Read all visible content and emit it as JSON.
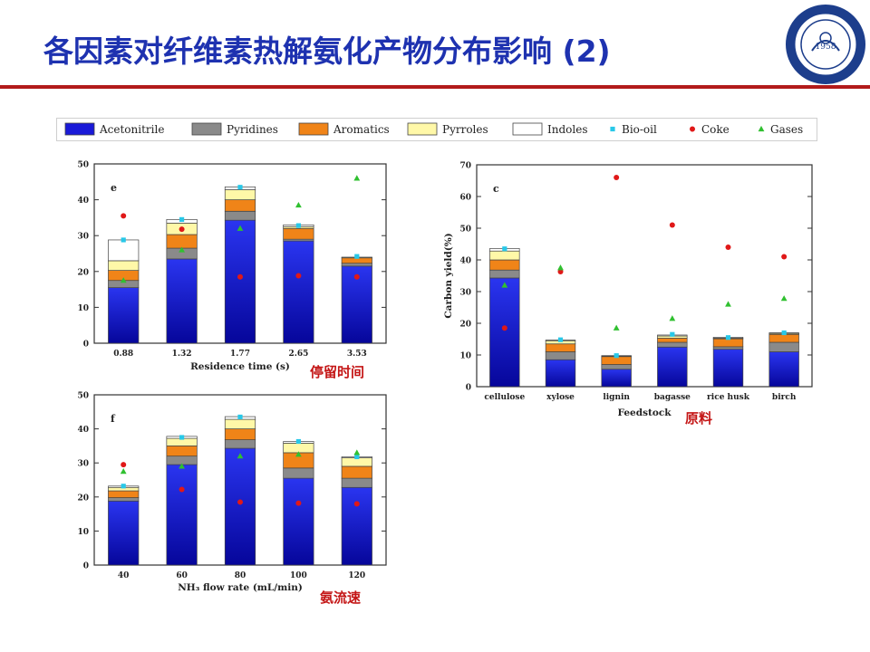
{
  "title": "各因素对纤维素热解氨化产物分布影响 (2)",
  "logo": {
    "year": "1958"
  },
  "legend": [
    {
      "key": "acetonitrile",
      "label": "Acetonitrile",
      "kind": "bar",
      "color": "#1a1ad8"
    },
    {
      "key": "pyridines",
      "label": "Pyridines",
      "kind": "bar",
      "color": "#8a8a8a"
    },
    {
      "key": "aromatics",
      "label": "Aromatics",
      "kind": "bar",
      "color": "#f08418"
    },
    {
      "key": "pyrroles",
      "label": "Pyrroles",
      "kind": "bar",
      "color": "#fff8a8"
    },
    {
      "key": "indoles",
      "label": "Indoles",
      "kind": "bar",
      "color": "#ffffff"
    },
    {
      "key": "biooil",
      "label": "Bio-oil",
      "kind": "square",
      "color": "#28c8e8"
    },
    {
      "key": "coke",
      "label": "Coke",
      "kind": "circle",
      "color": "#e01818"
    },
    {
      "key": "gases",
      "label": "Gases",
      "kind": "triangle",
      "color": "#30c030"
    }
  ],
  "annotations": {
    "e": "停留时间",
    "c": "原料",
    "f": "氨流速"
  },
  "chart_data": [
    {
      "id": "e",
      "type": "bar",
      "stacked": true,
      "panel_letter": "e",
      "xlabel": "Residence  time (s)",
      "ylabel": "",
      "ylim": [
        0,
        50
      ],
      "yticks": [
        0,
        10,
        20,
        30,
        40,
        50
      ],
      "categories": [
        "0.88",
        "1.32",
        "1.77",
        "2.65",
        "3.53"
      ],
      "series": [
        {
          "name": "Acetonitrile",
          "values": [
            15.5,
            23.5,
            34.3,
            28.5,
            21.5
          ]
        },
        {
          "name": "Pyridines",
          "values": [
            2.0,
            3.0,
            2.5,
            0.5,
            0.8
          ]
        },
        {
          "name": "Aromatics",
          "values": [
            2.8,
            3.8,
            3.2,
            3.0,
            1.5
          ]
        },
        {
          "name": "Pyrroles",
          "values": [
            2.7,
            3.2,
            2.8,
            0.5,
            0.2
          ]
        },
        {
          "name": "Indoles",
          "values": [
            5.8,
            1.0,
            0.8,
            0.5,
            0.0
          ]
        }
      ],
      "markers": {
        "Bio-oil": [
          28.8,
          34.5,
          43.5,
          32.8,
          24.2
        ],
        "Coke": [
          35.5,
          31.8,
          18.5,
          18.8,
          18.5
        ],
        "Gases": [
          17.5,
          26.0,
          32.0,
          38.5,
          46.0
        ]
      }
    },
    {
      "id": "f",
      "type": "bar",
      "stacked": true,
      "panel_letter": "f",
      "xlabel": "NH₃  flow  rate (mL/min)",
      "ylabel": "",
      "ylim": [
        0,
        50
      ],
      "yticks": [
        0,
        10,
        20,
        30,
        40,
        50
      ],
      "categories": [
        "40",
        "60",
        "80",
        "100",
        "120"
      ],
      "series": [
        {
          "name": "Acetonitrile",
          "values": [
            18.8,
            29.5,
            34.3,
            25.5,
            22.8
          ]
        },
        {
          "name": "Pyridines",
          "values": [
            1.0,
            2.5,
            2.5,
            3.0,
            2.7
          ]
        },
        {
          "name": "Aromatics",
          "values": [
            2.0,
            3.0,
            3.2,
            4.5,
            3.5
          ]
        },
        {
          "name": "Pyrroles",
          "values": [
            1.0,
            2.2,
            2.8,
            2.8,
            2.5
          ]
        },
        {
          "name": "Indoles",
          "values": [
            0.4,
            0.6,
            0.8,
            0.5,
            0.3
          ]
        }
      ],
      "markers": {
        "Bio-oil": [
          23.2,
          37.5,
          43.5,
          36.3,
          31.8
        ],
        "Coke": [
          29.5,
          22.2,
          18.5,
          18.2,
          18.0
        ],
        "Gases": [
          27.5,
          29.0,
          32.0,
          32.5,
          33.0
        ]
      }
    },
    {
      "id": "c",
      "type": "bar",
      "stacked": true,
      "panel_letter": "c",
      "xlabel": "Feedstock",
      "ylabel": "Carbon  yield(%)",
      "ylim": [
        0,
        70
      ],
      "yticks": [
        0,
        10,
        20,
        30,
        40,
        50,
        60,
        70
      ],
      "categories": [
        "cellulose",
        "xylose",
        "lignin",
        "bagasse",
        "rice husk",
        "birch"
      ],
      "series": [
        {
          "name": "Acetonitrile",
          "values": [
            34.3,
            8.5,
            5.5,
            12.5,
            11.8,
            11.0
          ]
        },
        {
          "name": "Pyridines",
          "values": [
            2.5,
            2.5,
            1.5,
            1.5,
            0.8,
            3.0
          ]
        },
        {
          "name": "Aromatics",
          "values": [
            3.2,
            2.5,
            2.5,
            1.3,
            2.5,
            2.5
          ]
        },
        {
          "name": "Pyrroles",
          "values": [
            2.8,
            1.0,
            0.2,
            0.7,
            0.2,
            0.3
          ]
        },
        {
          "name": "Indoles",
          "values": [
            0.8,
            0.2,
            0.1,
            0.3,
            0.3,
            0.2
          ]
        }
      ],
      "markers": {
        "Bio-oil": [
          43.5,
          14.8,
          9.8,
          16.5,
          15.5,
          17.0
        ],
        "Coke": [
          18.5,
          36.3,
          66.0,
          51.0,
          44.0,
          41.0
        ],
        "Gases": [
          32.0,
          37.5,
          18.5,
          21.5,
          26.0,
          27.8
        ]
      }
    }
  ]
}
